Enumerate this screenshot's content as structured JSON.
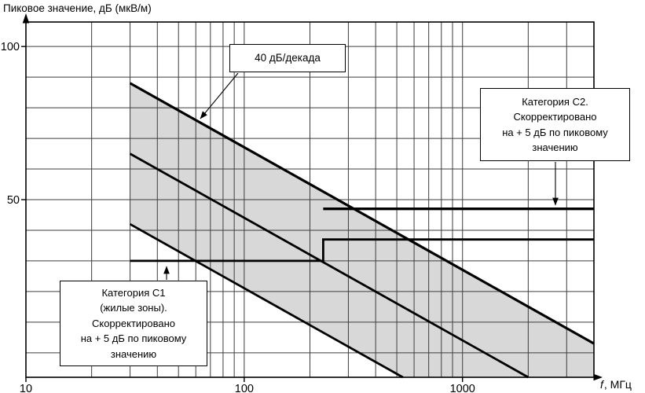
{
  "figure": {
    "background": "#ffffff",
    "line_color": "#000000"
  },
  "chart_data": {
    "type": "line",
    "title": "",
    "ylabel": "Пиковое значение, дБ (мкВ/м)",
    "xlabel": "f, МГц",
    "xlabel_symbol": "f",
    "xlabel_units": ", МГц",
    "x_scale": "log",
    "x_unit": "МГц",
    "y_unit": "дБ (мкВ/м)",
    "x_range_mhz": [
      10,
      4000
    ],
    "y_range_db": [
      -8,
      108
    ],
    "x_ticks": [
      10,
      100,
      1000
    ],
    "y_ticks": [
      50,
      100
    ],
    "grid": {
      "shown": true,
      "y_step_db": 10,
      "x_log_minor": true
    },
    "series": [
      {
        "name": "upper-band-edge",
        "kind": "sloping",
        "slope_db_per_decade": -40,
        "points_f_db": [
          [
            30,
            88
          ],
          [
            4000,
            3
          ]
        ],
        "lw": 3.2
      },
      {
        "name": "middle-sloping-line",
        "kind": "sloping",
        "slope_db_per_decade": -40,
        "points_f_db": [
          [
            30,
            65
          ],
          [
            2000,
            -8
          ]
        ],
        "lw": 2.8
      },
      {
        "name": "lower-band-edge",
        "kind": "sloping",
        "slope_db_per_decade": -40,
        "points_f_db": [
          [
            30,
            42
          ],
          [
            533,
            -8
          ]
        ],
        "lw": 2.8
      },
      {
        "name": "category-c1-limit",
        "kind": "stepped-limit",
        "points_f_db": [
          [
            30,
            30
          ],
          [
            230,
            30
          ],
          [
            230,
            37
          ],
          [
            4000,
            37
          ]
        ],
        "lw": 2.8
      },
      {
        "name": "category-c2-limit",
        "kind": "limit",
        "points_f_db": [
          [
            230,
            47
          ],
          [
            4000,
            47
          ]
        ],
        "lw": 3.4
      }
    ],
    "shaded_region": {
      "fill": "#d8d8d8",
      "points_f_db": [
        [
          30,
          88
        ],
        [
          4000,
          3
        ],
        [
          4000,
          -8
        ],
        [
          533,
          -8
        ],
        [
          30,
          42
        ]
      ]
    },
    "annotations": [
      {
        "id": "slope-label",
        "lines": [
          "40 дБ/декада"
        ],
        "points_to": "upper-band-edge"
      },
      {
        "id": "category-c2-label",
        "lines": [
          "Категория С2.",
          "Скорректировано",
          "на + 5 дБ по пиковому",
          "значению"
        ],
        "points_to": "category-c2-limit"
      },
      {
        "id": "category-c1-label",
        "lines": [
          "Категория С1",
          "(жилые зоны).",
          "Скорректировано",
          "на + 5 дБ по пиковому",
          "значению"
        ],
        "points_to": "category-c1-limit"
      }
    ]
  }
}
